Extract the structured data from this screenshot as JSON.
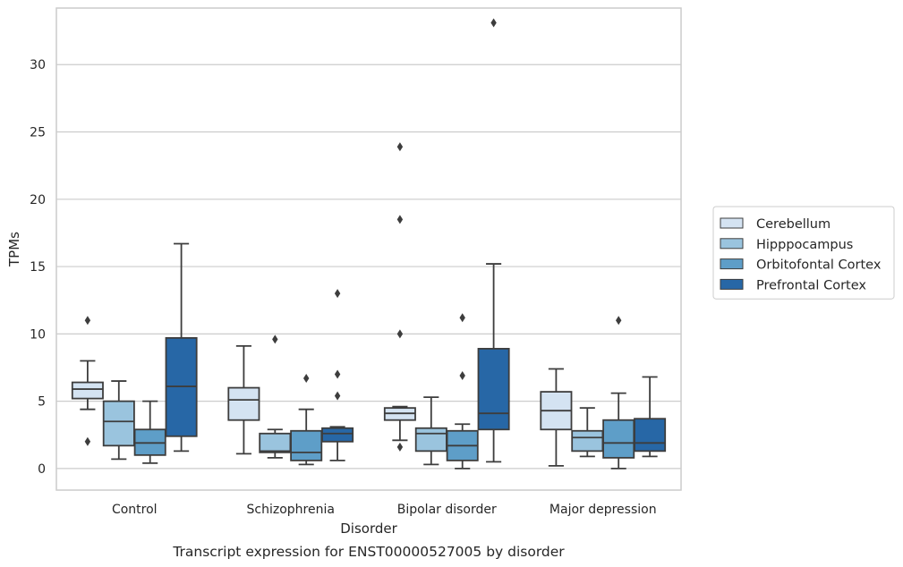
{
  "chart_data": {
    "type": "box",
    "caption": "Transcript expression for ENST00000527005 by disorder",
    "xlabel": "Disorder",
    "ylabel": "TPMs",
    "ylim": [
      -1.6,
      34.2
    ],
    "yticks": [
      0,
      5,
      10,
      15,
      20,
      25,
      30
    ],
    "grid": "horizontal",
    "legend_position": "right",
    "categories": [
      "Control",
      "Schizophrenia",
      "Bipolar disorder",
      "Major depression"
    ],
    "series": [
      {
        "name": "Cerebellum",
        "color": "#d4e3f2",
        "boxes": [
          {
            "whislo": 4.4,
            "q1": 5.2,
            "med": 5.9,
            "q3": 6.4,
            "whishi": 8.0,
            "fliers": [
              11.0,
              2.0
            ]
          },
          {
            "whislo": 1.1,
            "q1": 3.6,
            "med": 5.1,
            "q3": 6.0,
            "whishi": 9.1,
            "fliers": []
          },
          {
            "whislo": 2.1,
            "q1": 3.6,
            "med": 4.1,
            "q3": 4.5,
            "whishi": 4.6,
            "fliers": [
              23.9,
              18.5,
              10.0,
              1.6
            ]
          },
          {
            "whislo": 0.2,
            "q1": 2.9,
            "med": 4.3,
            "q3": 5.7,
            "whishi": 7.4,
            "fliers": []
          }
        ]
      },
      {
        "name": "Hipppocampus",
        "color": "#9ac4de",
        "boxes": [
          {
            "whislo": 0.7,
            "q1": 1.7,
            "med": 3.5,
            "q3": 5.0,
            "whishi": 6.5,
            "fliers": []
          },
          {
            "whislo": 0.8,
            "q1": 1.2,
            "med": 1.3,
            "q3": 2.6,
            "whishi": 2.9,
            "fliers": [
              9.6
            ]
          },
          {
            "whislo": 0.3,
            "q1": 1.3,
            "med": 2.6,
            "q3": 3.0,
            "whishi": 5.3,
            "fliers": []
          },
          {
            "whislo": 0.9,
            "q1": 1.3,
            "med": 2.3,
            "q3": 2.8,
            "whishi": 4.5,
            "fliers": []
          }
        ]
      },
      {
        "name": "Orbitofontal Cortex",
        "color": "#5e9ec8",
        "boxes": [
          {
            "whislo": 0.4,
            "q1": 1.0,
            "med": 1.9,
            "q3": 2.9,
            "whishi": 5.0,
            "fliers": []
          },
          {
            "whislo": 0.3,
            "q1": 0.6,
            "med": 1.2,
            "q3": 2.8,
            "whishi": 4.4,
            "fliers": [
              6.7
            ]
          },
          {
            "whislo": 0.0,
            "q1": 0.6,
            "med": 1.7,
            "q3": 2.8,
            "whishi": 3.3,
            "fliers": [
              11.2,
              6.9
            ]
          },
          {
            "whislo": 0.0,
            "q1": 0.8,
            "med": 1.9,
            "q3": 3.6,
            "whishi": 5.6,
            "fliers": [
              11.0
            ]
          }
        ]
      },
      {
        "name": "Prefrontal Cortex",
        "color": "#2767a6",
        "boxes": [
          {
            "whislo": 1.3,
            "q1": 2.4,
            "med": 6.1,
            "q3": 9.7,
            "whishi": 16.7,
            "fliers": []
          },
          {
            "whislo": 0.6,
            "q1": 2.0,
            "med": 2.6,
            "q3": 3.0,
            "whishi": 3.1,
            "fliers": [
              13.0,
              7.0,
              5.4
            ]
          },
          {
            "whislo": 0.5,
            "q1": 2.9,
            "med": 4.1,
            "q3": 8.9,
            "whishi": 15.2,
            "fliers": [
              33.1
            ]
          },
          {
            "whislo": 0.9,
            "q1": 1.3,
            "med": 1.9,
            "q3": 3.7,
            "whishi": 6.8,
            "fliers": []
          }
        ]
      }
    ]
  }
}
